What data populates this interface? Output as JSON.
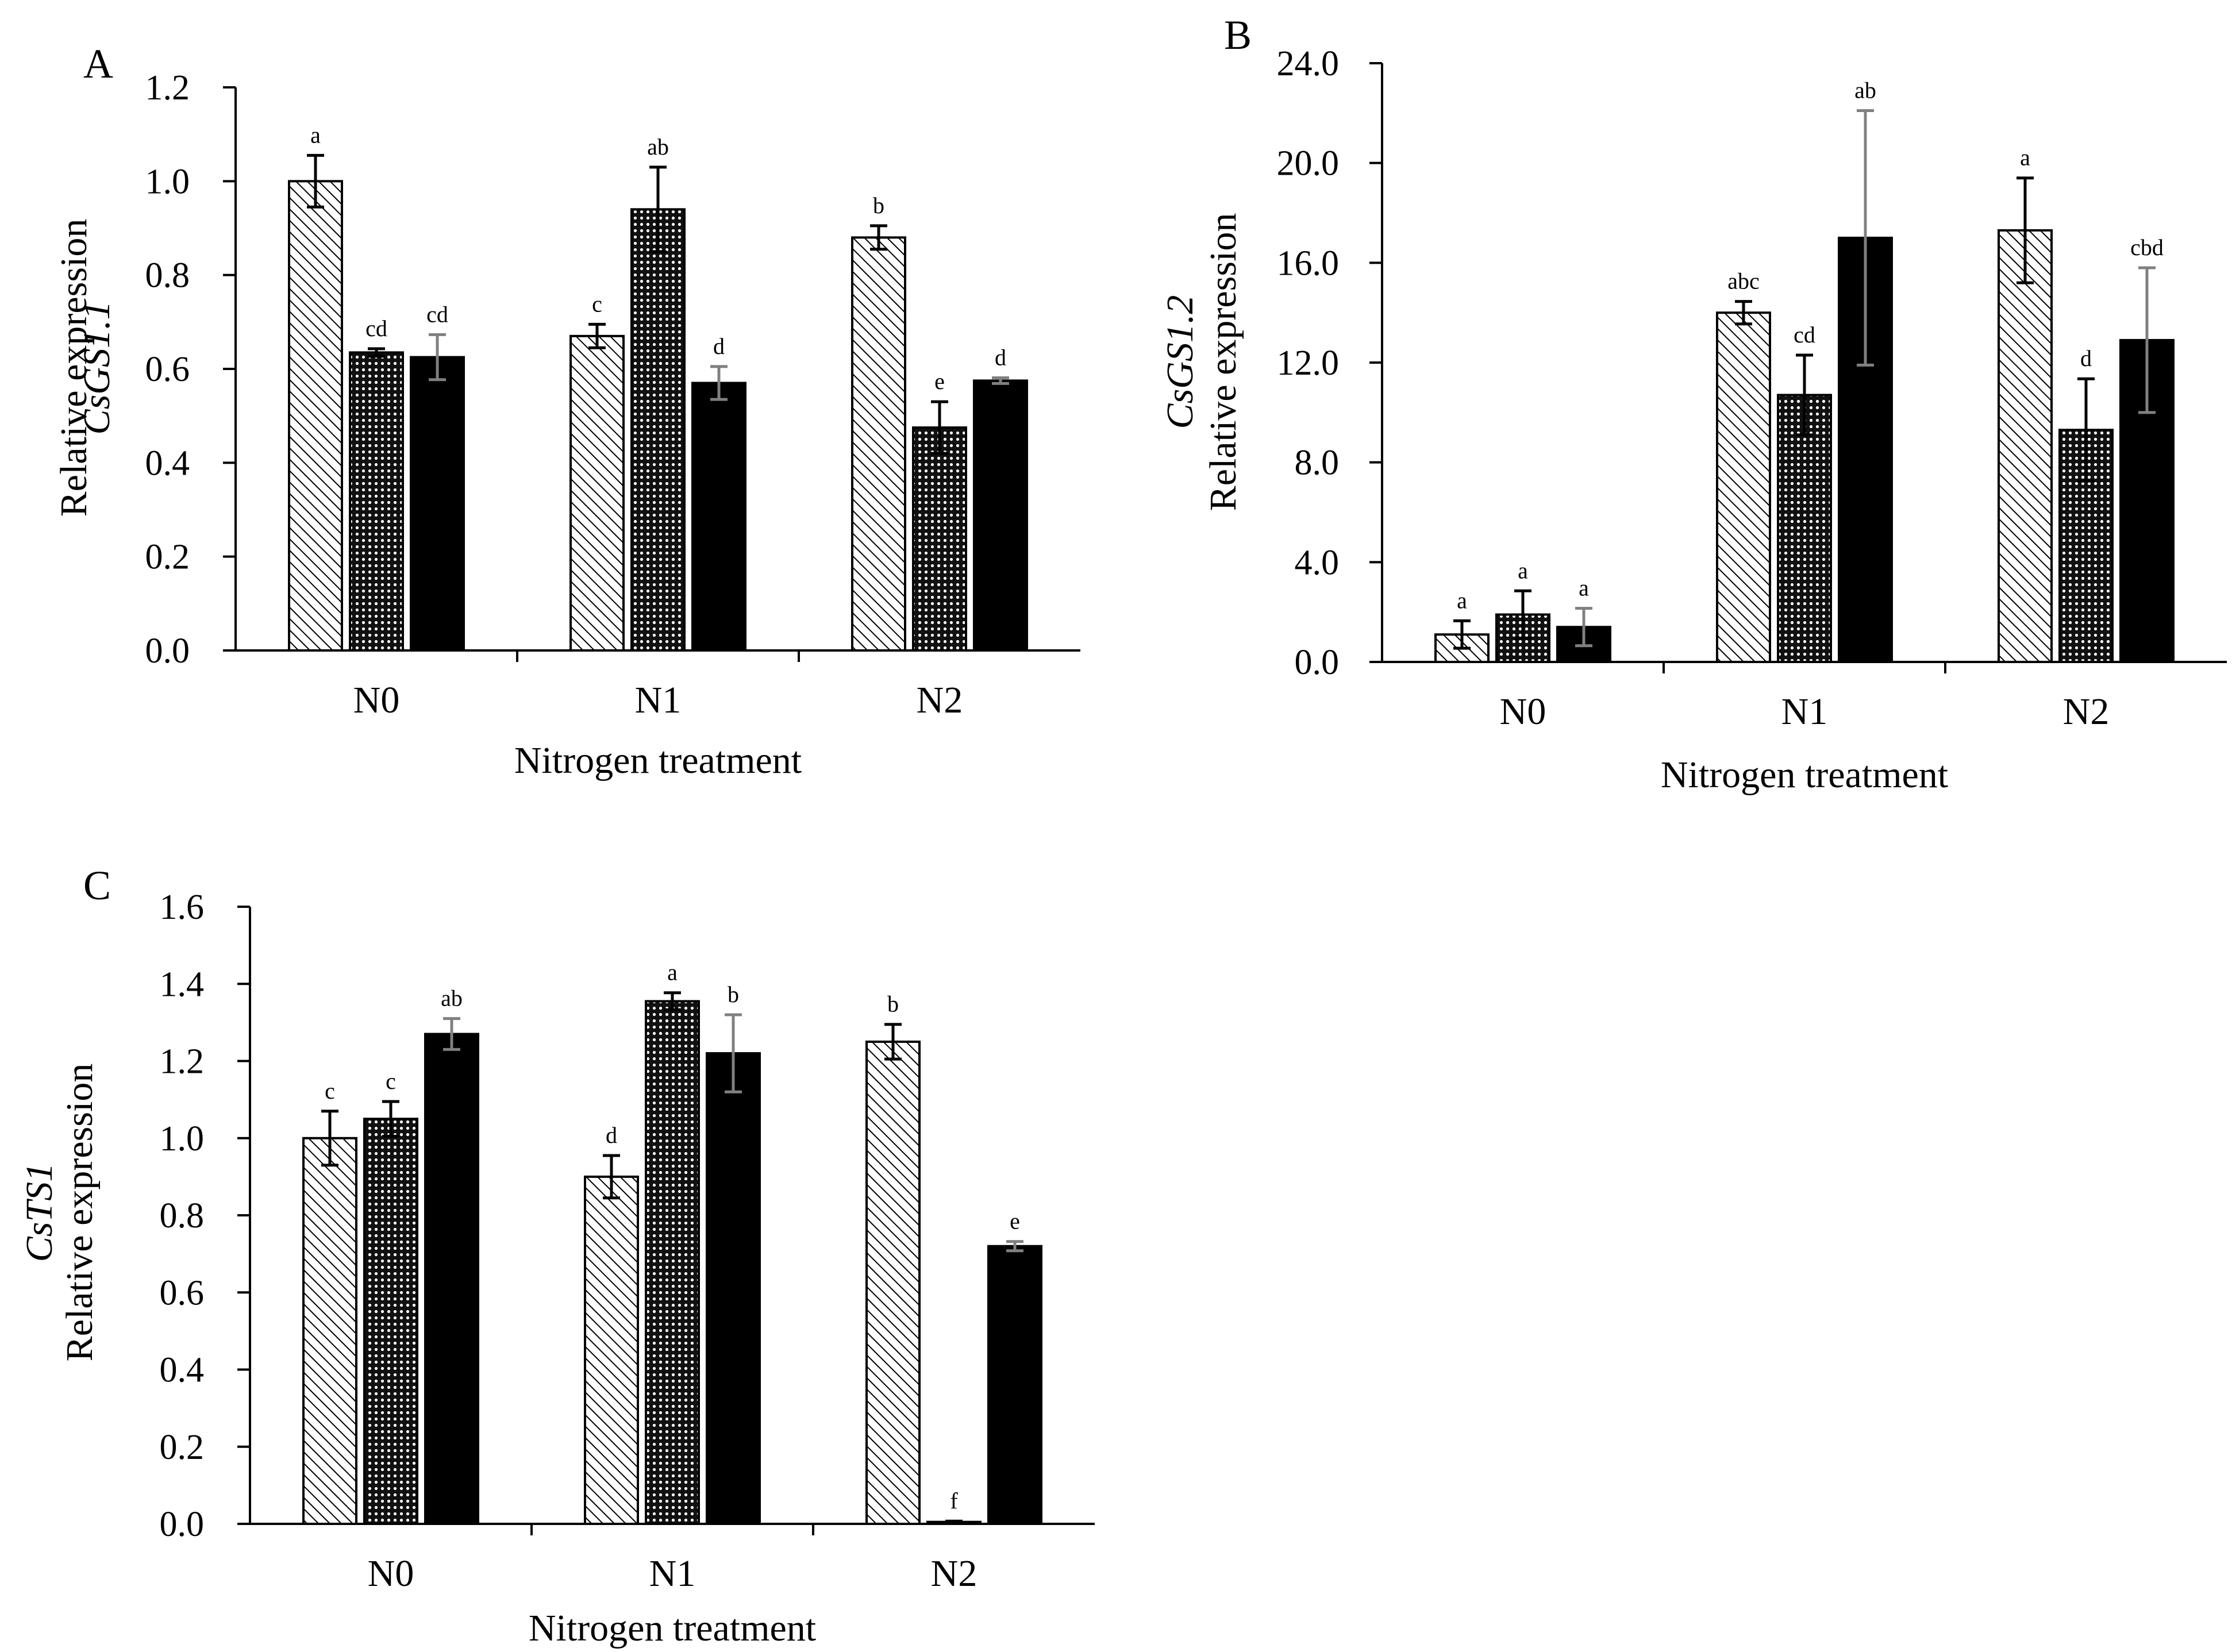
{
  "colors": {
    "series": [
      "#ffffff",
      "#3a3a3a",
      "#000000"
    ],
    "error_bar": [
      "#000000",
      "#000000",
      "#808080"
    ]
  },
  "chart_data": [
    {
      "type": "bar",
      "panel": "A",
      "title": "",
      "gene": "CsGS1.1",
      "ylabel": "Relative expression",
      "xlabel": "Nitrogen treatment",
      "categories": [
        "N0",
        "N1",
        "N2"
      ],
      "ylim": [
        0,
        1.2
      ],
      "yticks": [
        0.0,
        0.2,
        0.4,
        0.6,
        0.8,
        1.0,
        1.2
      ],
      "tick_decimals": 1,
      "grid": false,
      "legend": "none",
      "series": [
        {
          "pattern": "hatch",
          "values": [
            1.0,
            0.67,
            0.88
          ],
          "errors": [
            0.055,
            0.025,
            0.025
          ],
          "labels": [
            "a",
            "c",
            "b"
          ]
        },
        {
          "pattern": "dots",
          "values": [
            0.635,
            0.94,
            0.475
          ],
          "errors": [
            0.008,
            0.09,
            0.055
          ],
          "labels": [
            "cd",
            "ab",
            "e"
          ]
        },
        {
          "pattern": "solid",
          "values": [
            0.625,
            0.57,
            0.575
          ],
          "errors": [
            0.048,
            0.035,
            0.006
          ],
          "labels": [
            "cd",
            "d",
            "d"
          ]
        }
      ]
    },
    {
      "type": "bar",
      "panel": "B",
      "title": "",
      "gene": "CsGS1.2",
      "ylabel": "Relative expression",
      "xlabel": "Nitrogen treatment",
      "categories": [
        "N0",
        "N1",
        "N2"
      ],
      "ylim": [
        0,
        24
      ],
      "yticks": [
        0.0,
        4.0,
        8.0,
        12.0,
        16.0,
        20.0,
        24.0
      ],
      "tick_decimals": 1,
      "grid": false,
      "legend": "none",
      "series": [
        {
          "pattern": "hatch",
          "values": [
            1.1,
            14.0,
            17.3
          ],
          "errors": [
            0.55,
            0.45,
            2.1
          ],
          "labels": [
            "a",
            "abc",
            "a"
          ]
        },
        {
          "pattern": "dots",
          "values": [
            1.9,
            10.7,
            9.3
          ],
          "errors": [
            0.95,
            1.6,
            2.05
          ],
          "labels": [
            "a",
            "cd",
            "d"
          ]
        },
        {
          "pattern": "solid",
          "values": [
            1.4,
            17.0,
            12.9
          ],
          "errors": [
            0.75,
            5.1,
            2.9
          ],
          "labels": [
            "a",
            "ab",
            "cbd"
          ]
        }
      ]
    },
    {
      "type": "bar",
      "panel": "C",
      "title": "",
      "gene": "CsTS1",
      "ylabel": "Relative expression",
      "xlabel": "Nitrogen treatment",
      "categories": [
        "N0",
        "N1",
        "N2"
      ],
      "ylim": [
        0,
        1.6
      ],
      "yticks": [
        0.0,
        0.2,
        0.4,
        0.6,
        0.8,
        1.0,
        1.2,
        1.4,
        1.6
      ],
      "tick_decimals": 1,
      "grid": false,
      "legend": "none",
      "series": [
        {
          "pattern": "hatch",
          "values": [
            1.0,
            0.9,
            1.25
          ],
          "errors": [
            0.07,
            0.055,
            0.045
          ],
          "labels": [
            "c",
            "d",
            "b"
          ]
        },
        {
          "pattern": "dots",
          "values": [
            1.05,
            1.355,
            0.005
          ],
          "errors": [
            0.045,
            0.022,
            0.002
          ],
          "labels": [
            "c",
            "a",
            "f"
          ]
        },
        {
          "pattern": "solid",
          "values": [
            1.27,
            1.22,
            0.72
          ],
          "errors": [
            0.04,
            0.1,
            0.012
          ],
          "labels": [
            "ab",
            "b",
            "e"
          ]
        }
      ]
    }
  ]
}
